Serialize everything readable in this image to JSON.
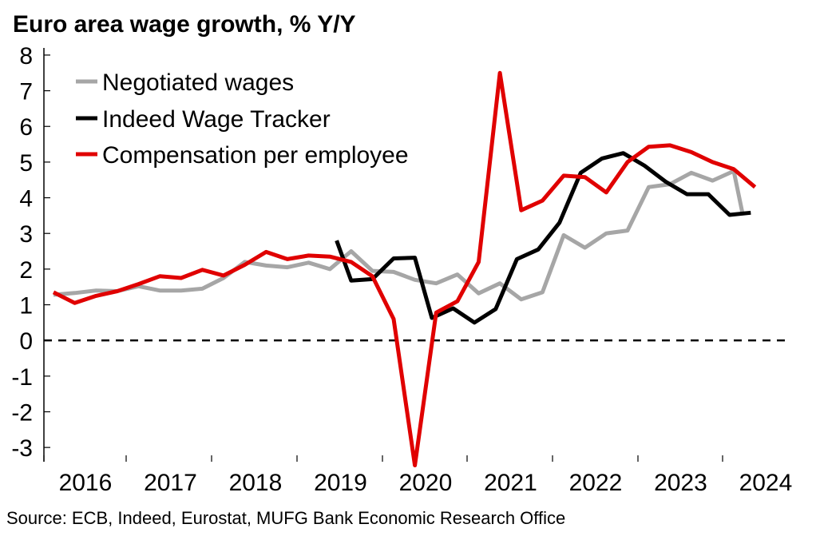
{
  "header": {
    "title": "Euro area wage growth, % Y/Y"
  },
  "footer": {
    "source": "Source: ECB, Indeed, Eurostat, MUFG Bank Economic Research Office"
  },
  "chart_data": {
    "type": "line",
    "title": "Euro area wage growth, % Y/Y",
    "xlabel": "",
    "ylabel": "",
    "ylim": [
      -3.4,
      8.2
    ],
    "yticks": [
      8,
      7,
      6,
      5,
      4,
      3,
      2,
      1,
      0,
      -1,
      -2,
      -3
    ],
    "xlim": [
      0,
      8.75
    ],
    "year_labels": [
      "2016",
      "2017",
      "2018",
      "2019",
      "2020",
      "2021",
      "2022",
      "2023",
      "2024"
    ],
    "zero_line": "dashed",
    "grid": false,
    "legend_position": "top-left",
    "series": [
      {
        "name": "Negotiated wages",
        "color": "#a6a6a6",
        "points": [
          [
            0,
            1.28
          ],
          [
            0.25,
            1.33
          ],
          [
            0.5,
            1.4
          ],
          [
            0.75,
            1.38
          ],
          [
            1,
            1.52
          ],
          [
            1.25,
            1.4
          ],
          [
            1.5,
            1.4
          ],
          [
            1.75,
            1.45
          ],
          [
            2,
            1.75
          ],
          [
            2.25,
            2.2
          ],
          [
            2.5,
            2.1
          ],
          [
            2.75,
            2.05
          ],
          [
            3,
            2.18
          ],
          [
            3.25,
            2.0
          ],
          [
            3.5,
            2.5
          ],
          [
            3.75,
            1.95
          ],
          [
            4,
            1.92
          ],
          [
            4.25,
            1.7
          ],
          [
            4.5,
            1.6
          ],
          [
            4.75,
            1.85
          ],
          [
            5,
            1.32
          ],
          [
            5.25,
            1.6
          ],
          [
            5.5,
            1.15
          ],
          [
            5.75,
            1.35
          ],
          [
            6,
            2.95
          ],
          [
            6.25,
            2.6
          ],
          [
            6.5,
            3.0
          ],
          [
            6.75,
            3.08
          ],
          [
            7,
            4.3
          ],
          [
            7.25,
            4.38
          ],
          [
            7.5,
            4.7
          ],
          [
            7.75,
            4.48
          ],
          [
            8,
            4.75
          ],
          [
            8.1,
            3.6
          ]
        ]
      },
      {
        "name": "Indeed Wage Tracker",
        "color": "#000000",
        "points": [
          [
            3.33,
            2.8
          ],
          [
            3.5,
            1.68
          ],
          [
            3.75,
            1.72
          ],
          [
            4,
            2.3
          ],
          [
            4.25,
            2.32
          ],
          [
            4.45,
            0.63
          ],
          [
            4.7,
            0.9
          ],
          [
            4.95,
            0.5
          ],
          [
            5.2,
            0.88
          ],
          [
            5.45,
            2.28
          ],
          [
            5.7,
            2.55
          ],
          [
            5.95,
            3.3
          ],
          [
            6.2,
            4.7
          ],
          [
            6.45,
            5.1
          ],
          [
            6.7,
            5.25
          ],
          [
            6.95,
            4.9
          ],
          [
            7.2,
            4.45
          ],
          [
            7.45,
            4.1
          ],
          [
            7.7,
            4.1
          ],
          [
            7.95,
            3.52
          ],
          [
            8.2,
            3.58
          ]
        ]
      },
      {
        "name": "Compensation per employee",
        "color": "#e00000",
        "points": [
          [
            0,
            1.35
          ],
          [
            0.25,
            1.05
          ],
          [
            0.5,
            1.25
          ],
          [
            0.75,
            1.38
          ],
          [
            1,
            1.58
          ],
          [
            1.25,
            1.8
          ],
          [
            1.5,
            1.75
          ],
          [
            1.75,
            1.98
          ],
          [
            2,
            1.82
          ],
          [
            2.25,
            2.12
          ],
          [
            2.5,
            2.48
          ],
          [
            2.75,
            2.28
          ],
          [
            3,
            2.38
          ],
          [
            3.25,
            2.35
          ],
          [
            3.5,
            2.2
          ],
          [
            3.75,
            1.8
          ],
          [
            4,
            0.6
          ],
          [
            4.25,
            -3.5
          ],
          [
            4.5,
            0.78
          ],
          [
            4.75,
            1.1
          ],
          [
            5,
            2.2
          ],
          [
            5.25,
            7.5
          ],
          [
            5.5,
            3.65
          ],
          [
            5.75,
            3.92
          ],
          [
            6,
            4.62
          ],
          [
            6.25,
            4.58
          ],
          [
            6.5,
            4.15
          ],
          [
            6.75,
            5.0
          ],
          [
            7,
            5.43
          ],
          [
            7.25,
            5.47
          ],
          [
            7.5,
            5.28
          ],
          [
            7.75,
            5.0
          ],
          [
            8,
            4.8
          ],
          [
            8.25,
            4.3
          ]
        ]
      }
    ]
  }
}
